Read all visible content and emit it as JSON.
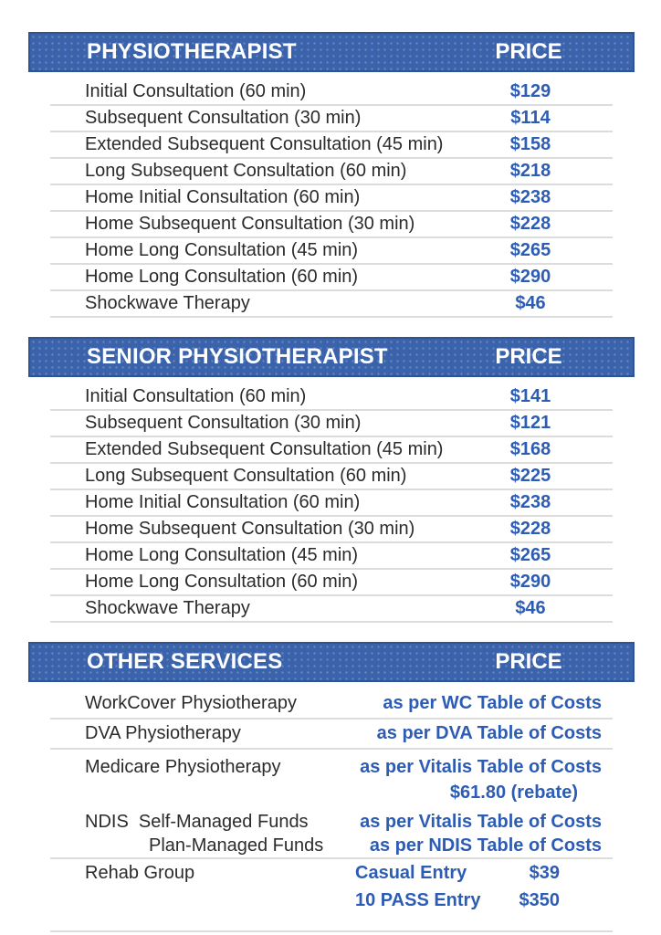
{
  "colors": {
    "header_bg": "#3b63ab",
    "header_border": "#2e5496",
    "header_text": "#ffffff",
    "service_text": "#2b2b2b",
    "price_text": "#2d5cb5",
    "divider": "#dcdcdc"
  },
  "sections": [
    {
      "title": "PHYSIOTHERAPIST",
      "price_header": "PRICE",
      "rows": [
        {
          "service": "Initial Consultation (60 min)",
          "price": "$129"
        },
        {
          "service": "Subsequent Consultation (30 min)",
          "price": "$114"
        },
        {
          "service": "Extended Subsequent Consultation (45 min)",
          "price": "$158"
        },
        {
          "service": "Long Subsequent Consultation (60 min)",
          "price": "$218"
        },
        {
          "service": "Home Initial Consultation (60 min)",
          "price": "$238"
        },
        {
          "service": "Home Subsequent Consultation (30 min)",
          "price": "$228"
        },
        {
          "service": "Home Long Consultation (45 min)",
          "price": "$265"
        },
        {
          "service": "Home Long Consultation (60 min)",
          "price": "$290"
        },
        {
          "service": "Shockwave Therapy",
          "price": "$46"
        }
      ]
    },
    {
      "title": "SENIOR PHYSIOTHERAPIST",
      "price_header": "PRICE",
      "rows": [
        {
          "service": "Initial Consultation (60 min)",
          "price": "$141"
        },
        {
          "service": "Subsequent Consultation (30 min)",
          "price": "$121"
        },
        {
          "service": "Extended Subsequent Consultation (45 min)",
          "price": "$168"
        },
        {
          "service": "Long Subsequent Consultation (60 min)",
          "price": "$225"
        },
        {
          "service": "Home Initial Consultation (60 min)",
          "price": "$238"
        },
        {
          "service": "Home Subsequent Consultation (30 min)",
          "price": "$228"
        },
        {
          "service": "Home Long Consultation (45 min)",
          "price": "$265"
        },
        {
          "service": "Home Long Consultation (60 min)",
          "price": "$290"
        },
        {
          "service": "Shockwave Therapy",
          "price": "$46"
        }
      ]
    },
    {
      "title": "OTHER SERVICES",
      "price_header": "PRICE",
      "rows": [
        {
          "service": "WorkCover Physiotherapy",
          "price": "as per WC Table of Costs",
          "divider": true
        },
        {
          "service": "DVA Physiotherapy",
          "price": "as per DVA Table of Costs",
          "divider": true
        },
        {
          "service": "Medicare Physiotherapy",
          "price_lines": [
            "as per Vitalis Table of Costs",
            "$61.80 (rebate)"
          ],
          "divider": false
        },
        {
          "service_lines": [
            "NDIS  Self-Managed Funds",
            "Plan-Managed Funds"
          ],
          "price_lines": [
            "as per Vitalis Table of Costs",
            "as per NDIS Table of Costs"
          ],
          "divider": true
        },
        {
          "service": "Rehab Group",
          "price_pairs": [
            {
              "label": "Casual Entry",
              "amount": "$39"
            },
            {
              "label": "10 PASS Entry",
              "amount": "$350"
            }
          ],
          "divider": true
        }
      ]
    }
  ]
}
